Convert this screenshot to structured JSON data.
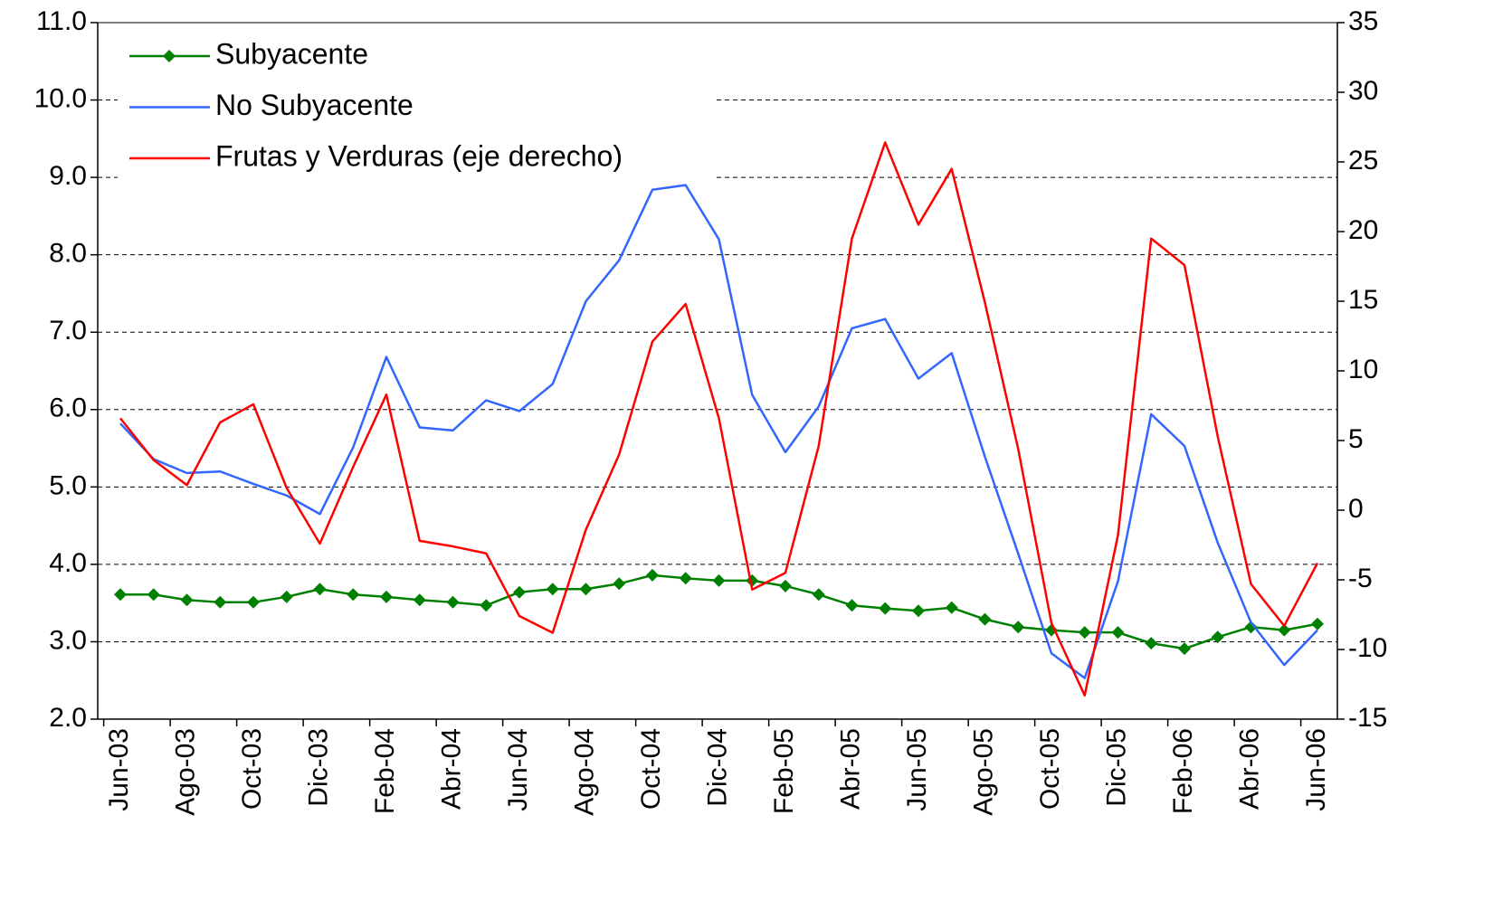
{
  "chart_data": {
    "type": "line",
    "categories": [
      "Jun-03",
      null,
      "Ago-03",
      null,
      "Oct-03",
      null,
      "Dic-03",
      null,
      "Feb-04",
      null,
      "Abr-04",
      null,
      "Jun-04",
      null,
      "Ago-04",
      null,
      "Oct-04",
      null,
      "Dic-04",
      null,
      "Feb-05",
      null,
      "Abr-05",
      null,
      "Jun-05",
      null,
      "Ago-05",
      null,
      "Oct-05",
      null,
      "Dic-05",
      null,
      "Feb-06",
      null,
      "Abr-06",
      null,
      "Jun-06"
    ],
    "series": [
      {
        "name": "Subyacente",
        "color": "#008000",
        "marker": "diamond",
        "values": [
          3.61,
          3.61,
          3.54,
          3.51,
          3.51,
          3.58,
          3.68,
          3.61,
          3.58,
          3.54,
          3.51,
          3.47,
          3.64,
          3.68,
          3.68,
          3.75,
          3.86,
          3.82,
          3.79,
          3.79,
          3.72,
          3.61,
          3.47,
          3.43,
          3.4,
          3.44,
          3.29,
          3.19,
          3.15,
          3.12,
          3.12,
          2.98,
          2.91,
          3.06,
          3.19,
          3.15,
          3.23
        ]
      },
      {
        "name": "No Subyacente",
        "color": "#3366ff",
        "values": [
          5.82,
          5.36,
          5.18,
          5.2,
          5.04,
          4.89,
          4.65,
          5.51,
          6.68,
          5.77,
          5.73,
          6.12,
          5.98,
          6.33,
          7.4,
          7.93,
          8.84,
          8.9,
          8.2,
          6.19,
          5.45,
          6.04,
          7.05,
          7.17,
          6.4,
          6.73,
          5.39,
          4.14,
          2.85,
          2.53,
          3.78,
          5.94,
          5.53,
          4.28,
          3.25,
          2.7,
          3.15
        ]
      },
      {
        "name": "Frutas y Verduras (eje derecho)",
        "color": "#ff0000",
        "axis": "y2",
        "values": [
          6.6,
          3.6,
          1.8,
          6.3,
          7.6,
          1.6,
          -2.4,
          3.1,
          8.3,
          -2.2,
          -2.6,
          -3.1,
          -7.6,
          -8.8,
          -1.4,
          4.0,
          12.1,
          14.8,
          6.6,
          -5.7,
          -4.5,
          4.6,
          19.5,
          26.4,
          20.5,
          24.5,
          14.9,
          4.4,
          -8.1,
          -13.3,
          -1.8,
          19.5,
          17.6,
          5.3,
          -5.3,
          -8.3,
          -3.8
        ]
      }
    ],
    "ylim": [
      2,
      11
    ],
    "yticks": [
      {
        "value": 2,
        "label": "2.0"
      },
      {
        "value": 3,
        "label": "3.0"
      },
      {
        "value": 4,
        "label": "4.0"
      },
      {
        "value": 5,
        "label": "5.0"
      },
      {
        "value": 6,
        "label": "6.0"
      },
      {
        "value": 7,
        "label": "7.0"
      },
      {
        "value": 8,
        "label": "8.0"
      },
      {
        "value": 9,
        "label": "9.0"
      },
      {
        "value": 10,
        "label": "10.0"
      },
      {
        "value": 11,
        "label": "11.0"
      }
    ],
    "y2lim": [
      -15,
      35
    ],
    "y2ticks": [
      -15,
      -10,
      -5,
      0,
      5,
      10,
      15,
      20,
      25,
      30,
      35
    ],
    "grid": true,
    "legend": "top-left"
  }
}
